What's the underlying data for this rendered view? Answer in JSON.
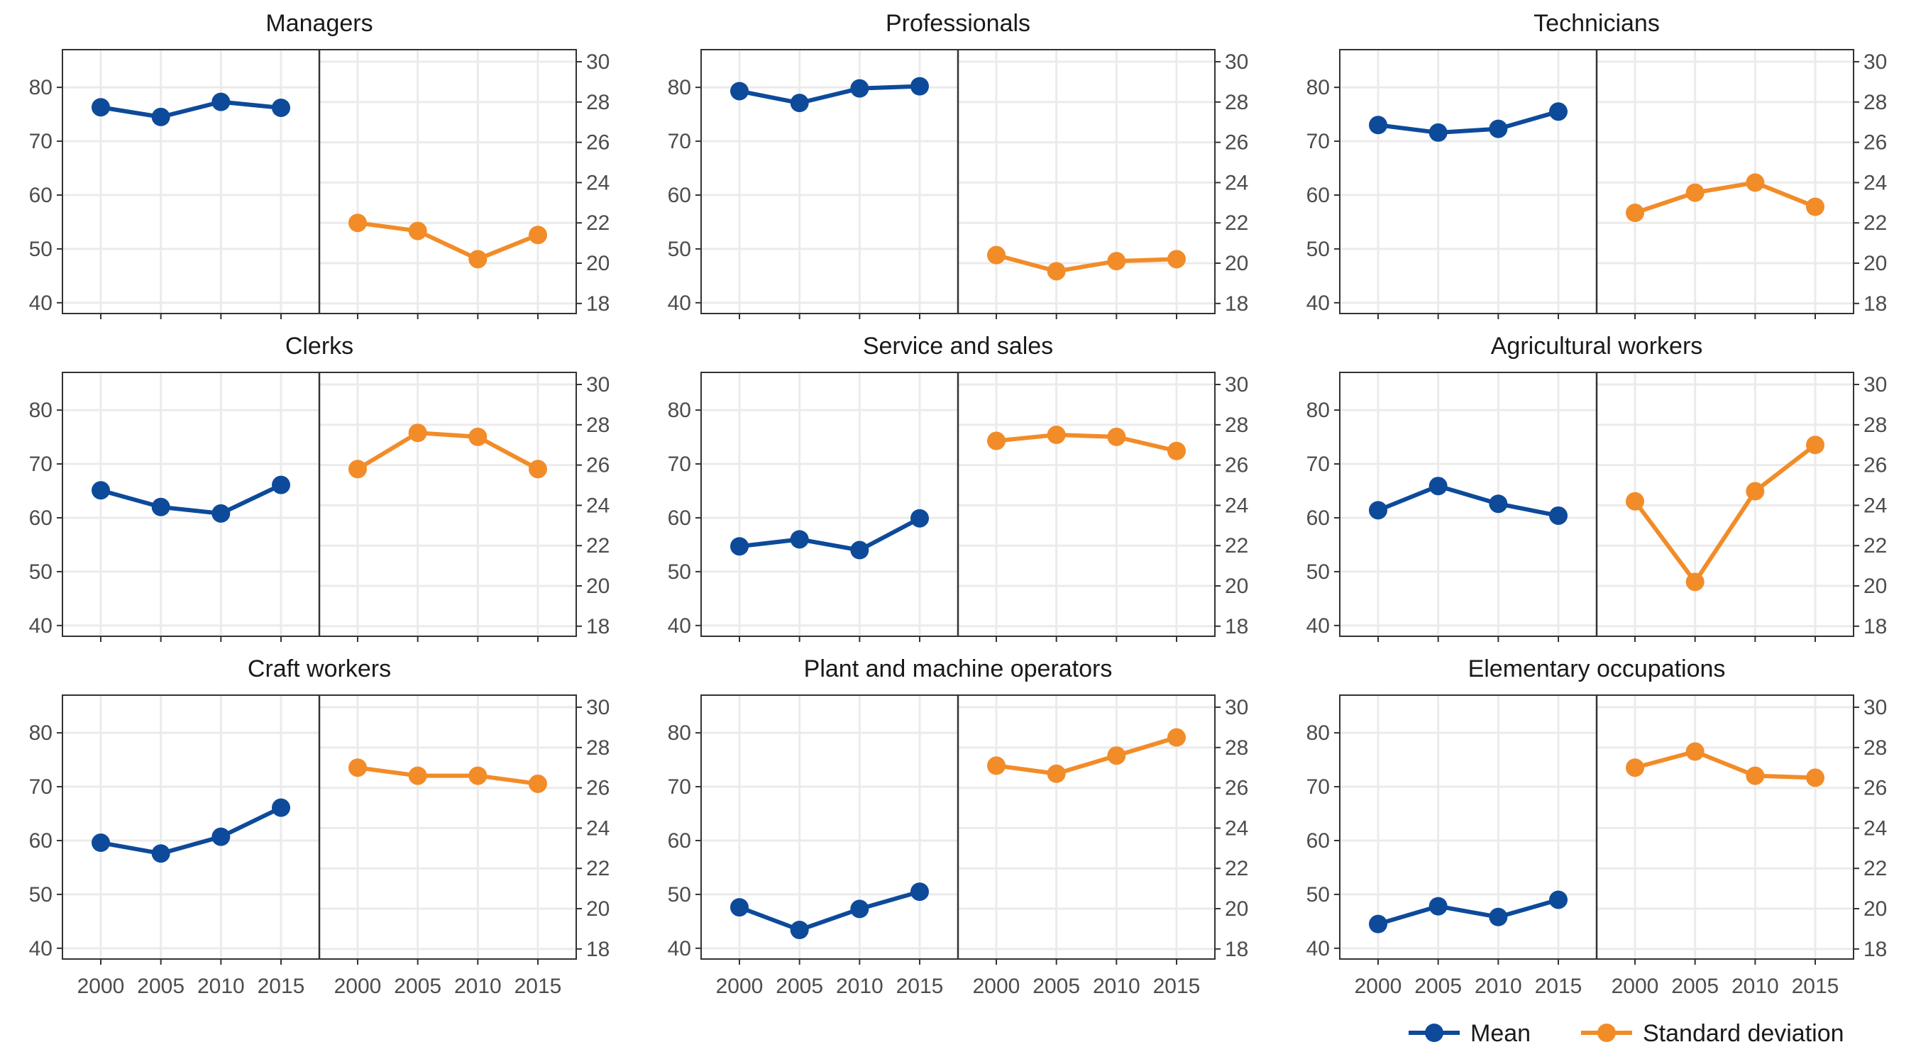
{
  "chart_data": {
    "type": "line",
    "x": [
      2000,
      2005,
      2010,
      2015
    ],
    "x_tick_labels": [
      "2000",
      "2005",
      "2010",
      "2015"
    ],
    "left_axis": {
      "ylim": [
        38,
        87
      ],
      "ticks": [
        "40",
        "50",
        "60",
        "70",
        "80"
      ]
    },
    "right_axis": {
      "ylim": [
        17.5,
        30.6
      ],
      "ticks": [
        "18",
        "20",
        "22",
        "24",
        "26",
        "28",
        "30"
      ]
    },
    "grid": true,
    "legend_position": "bottom-right",
    "colors": {
      "mean": "#0d4a9a",
      "sd": "#f28c28",
      "grid": "#ebebeb",
      "frame": "#333333"
    },
    "series_names": {
      "mean": "Mean",
      "sd": "Standard deviation"
    },
    "panels": [
      {
        "title": "Managers",
        "mean": [
          76.3,
          74.5,
          77.3,
          76.2
        ],
        "sd": [
          22.0,
          21.6,
          20.2,
          21.4
        ]
      },
      {
        "title": "Professionals",
        "mean": [
          79.3,
          77.1,
          79.8,
          80.2
        ],
        "sd": [
          20.4,
          19.6,
          20.1,
          20.2
        ]
      },
      {
        "title": "Technicians",
        "mean": [
          73.0,
          71.6,
          72.3,
          75.5
        ],
        "sd": [
          22.5,
          23.5,
          24.0,
          22.8
        ]
      },
      {
        "title": "Clerks",
        "mean": [
          65.1,
          62.0,
          60.8,
          66.1
        ],
        "sd": [
          25.8,
          27.6,
          27.4,
          25.8
        ]
      },
      {
        "title": "Service and sales",
        "mean": [
          54.7,
          56.0,
          54.0,
          59.9
        ],
        "sd": [
          27.2,
          27.5,
          27.4,
          26.7
        ]
      },
      {
        "title": "Agricultural workers",
        "mean": [
          61.4,
          65.9,
          62.6,
          60.4
        ],
        "sd": [
          24.2,
          20.2,
          24.7,
          27.0
        ]
      },
      {
        "title": "Craft workers",
        "mean": [
          59.6,
          57.6,
          60.7,
          66.1
        ],
        "sd": [
          27.0,
          26.6,
          26.6,
          26.2
        ]
      },
      {
        "title": "Plant and machine operators",
        "mean": [
          47.6,
          43.4,
          47.3,
          50.5
        ],
        "sd": [
          27.1,
          26.7,
          27.6,
          28.5
        ]
      },
      {
        "title": "Elementary occupations",
        "mean": [
          44.5,
          47.8,
          45.8,
          49.0
        ],
        "sd": [
          27.0,
          27.8,
          26.6,
          26.5
        ]
      }
    ]
  }
}
